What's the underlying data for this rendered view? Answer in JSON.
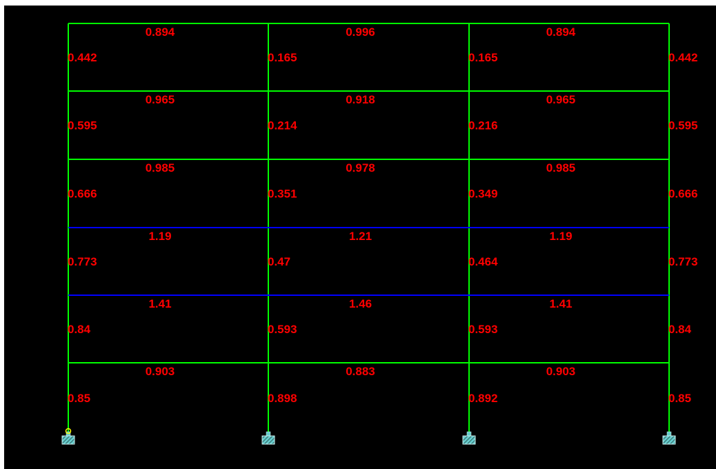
{
  "colors": {
    "background": "#000000",
    "frame_green": "#00ff00",
    "frame_blue": "#0000ff",
    "label_red": "#ff0000",
    "support_fill": "#66cccc",
    "node_yellow": "#ffff00"
  },
  "frame": {
    "bays": 3,
    "stories": 6,
    "blue_beam_levels": [
      3,
      4
    ],
    "beam_ratios": [
      [
        "0.894",
        "0.996",
        "0.894"
      ],
      [
        "0.965",
        "0.918",
        "0.965"
      ],
      [
        "0.985",
        "0.978",
        "0.985"
      ],
      [
        "1.19",
        "1.21",
        "1.19"
      ],
      [
        "1.41",
        "1.46",
        "1.41"
      ],
      [
        "0.903",
        "0.883",
        "0.903"
      ]
    ],
    "column_ratios": [
      [
        "0.442",
        "0.165",
        "0.165",
        "0.442"
      ],
      [
        "0.595",
        "0.214",
        "0.216",
        "0.595"
      ],
      [
        "0.666",
        "0.351",
        "0.349",
        "0.666"
      ],
      [
        "0.773",
        "0.47",
        "0.464",
        "0.773"
      ],
      [
        "0.84",
        "0.593",
        "0.593",
        "0.84"
      ],
      [
        "0.85",
        "0.898",
        "0.892",
        "0.85"
      ]
    ],
    "supports": [
      "fixed-support",
      "fixed-support",
      "fixed-support",
      "fixed-support"
    ],
    "selected_node_icon": "node-marker-icon"
  }
}
